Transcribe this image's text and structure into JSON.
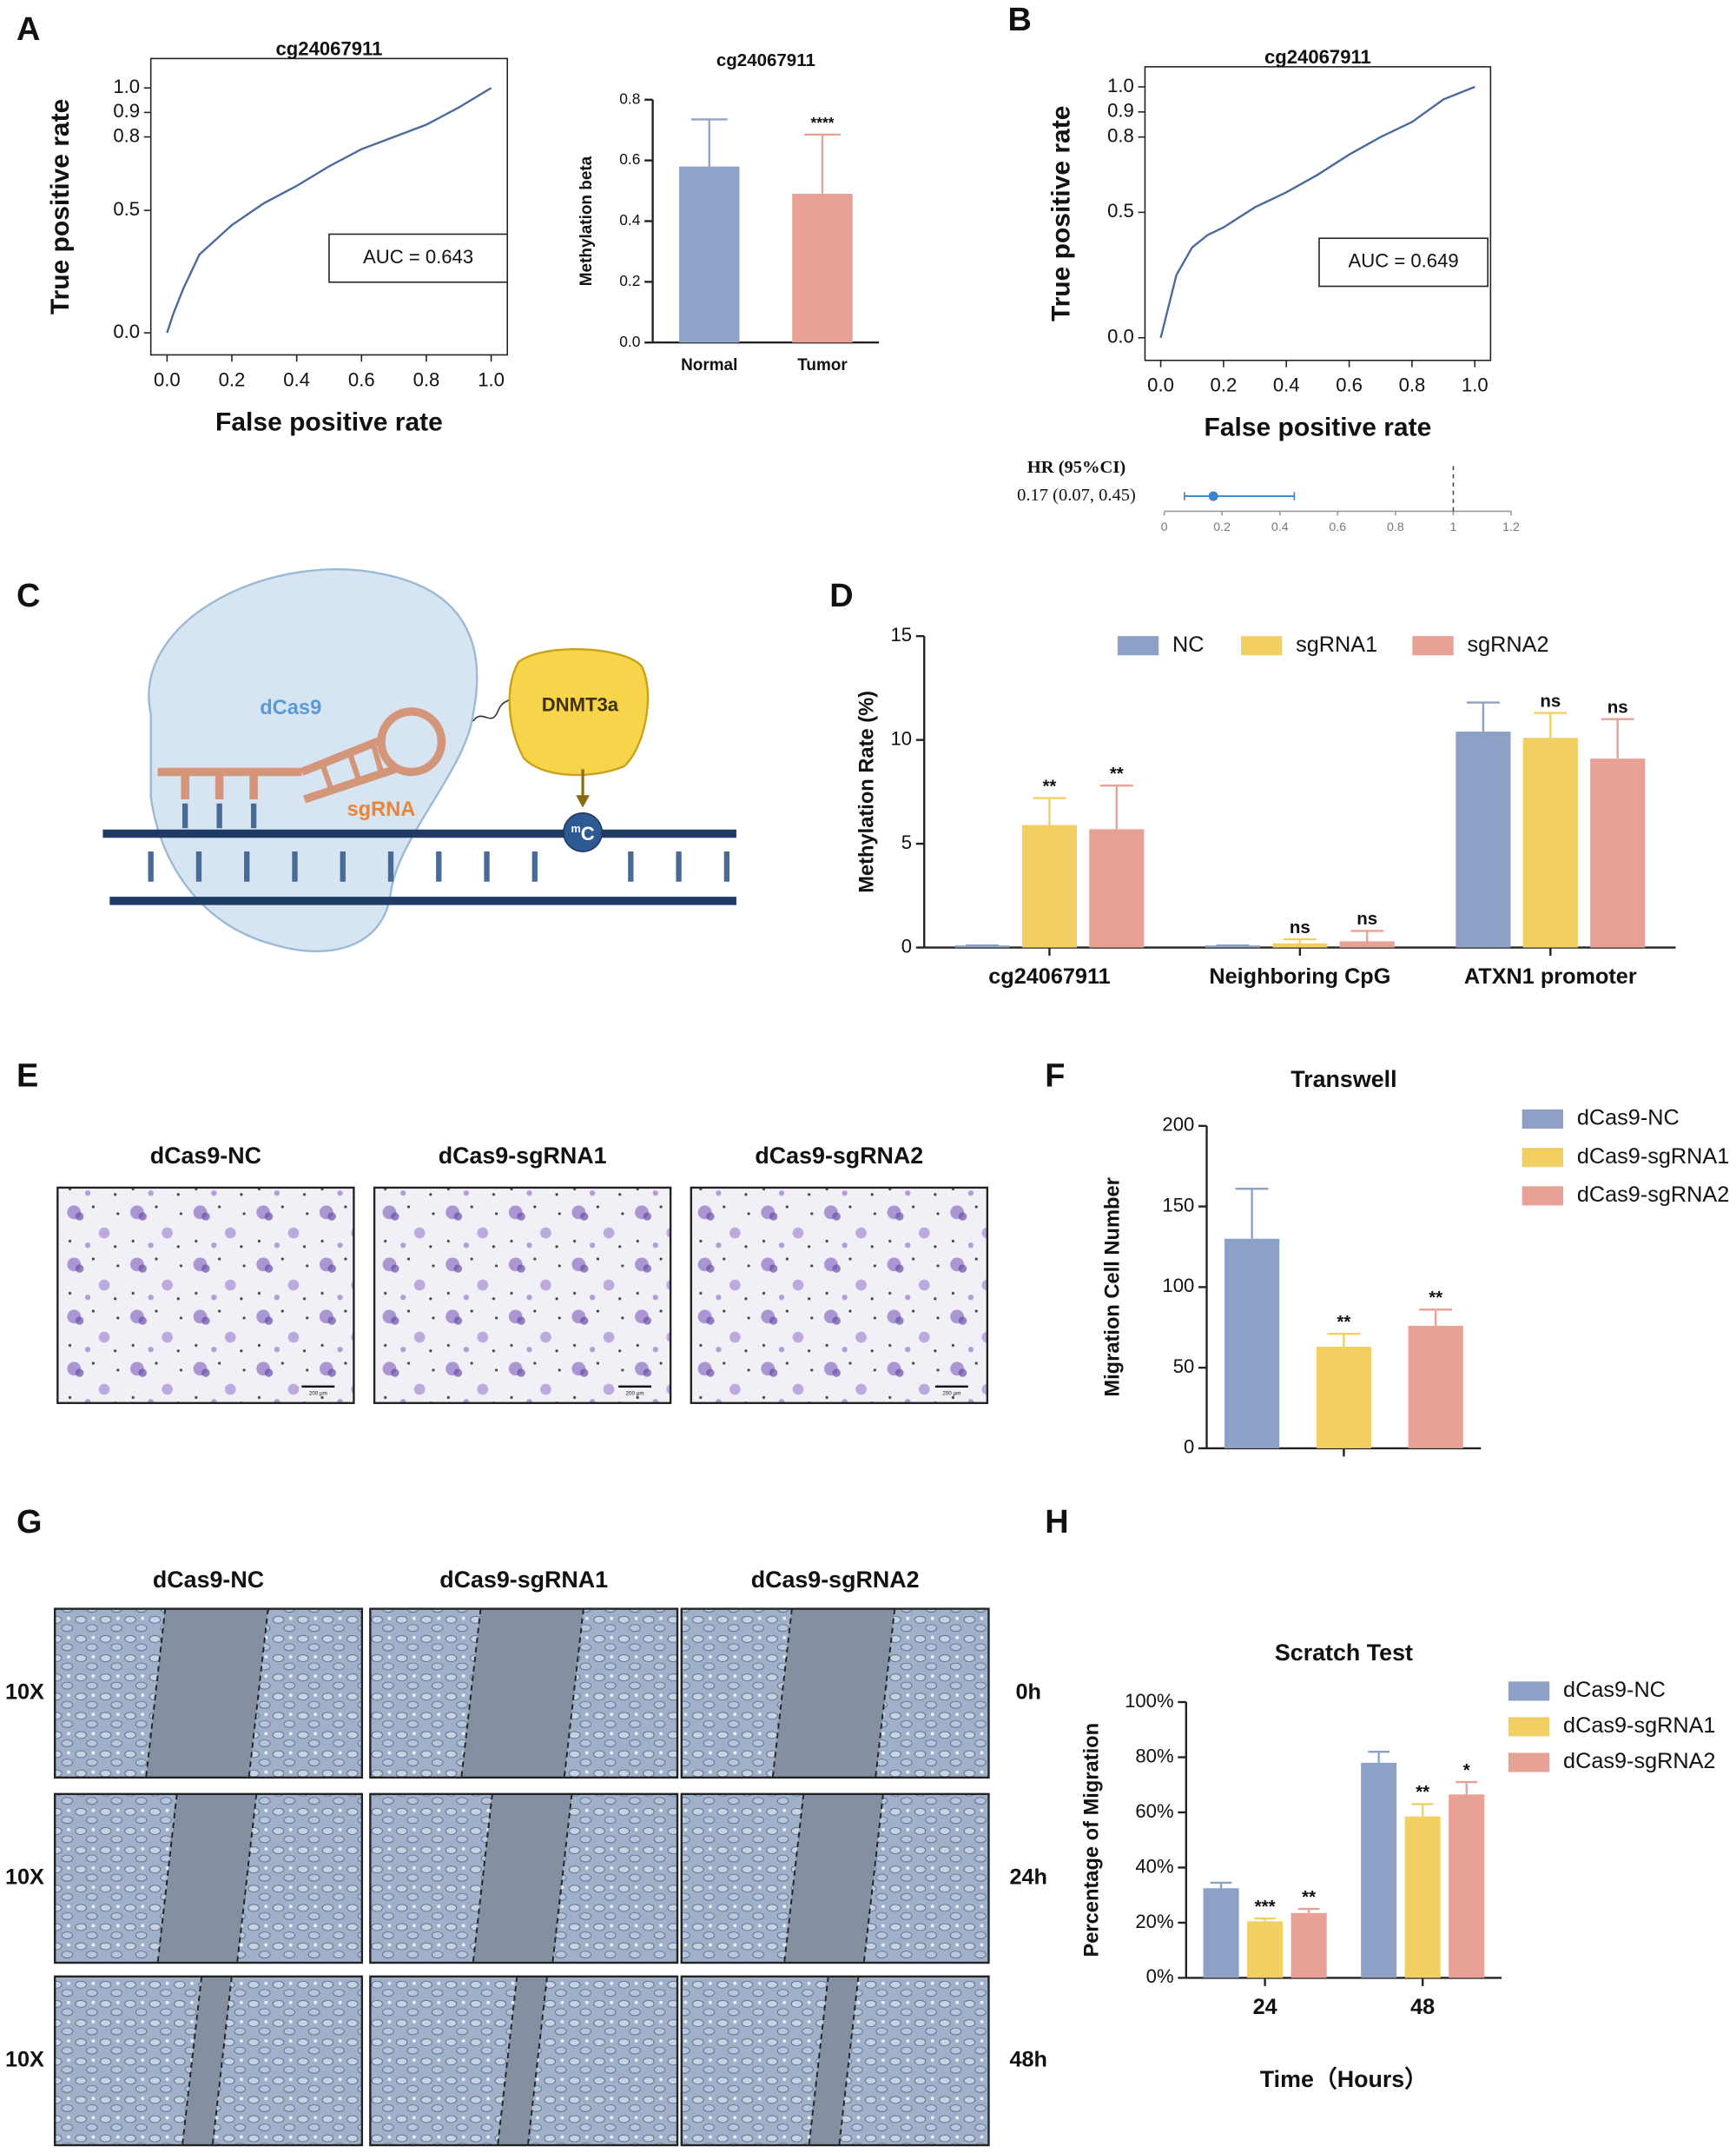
{
  "panel_labels": [
    "A",
    "B",
    "C",
    "D",
    "E",
    "F",
    "G",
    "H"
  ],
  "diagram": {
    "protein": "dCas9",
    "guide": "sgRNA",
    "enzyme": "DNMT3a",
    "methyl_superscript": "m",
    "methyl_base": "C"
  },
  "transwell_images": {
    "columns": [
      "dCas9-NC",
      "dCas9-sgRNA1",
      "dCas9-sgRNA2"
    ],
    "scale_bar": "200 μm"
  },
  "scratch_images": {
    "columns": [
      "dCas9-NC",
      "dCas9-sgRNA1",
      "dCas9-sgRNA2"
    ],
    "magnification": "10X",
    "times": [
      "0h",
      "24h",
      "48h"
    ]
  },
  "chart_data": [
    {
      "type": "line",
      "title": "cg24067911",
      "xlabel": "False positive rate",
      "ylabel": "True positive rate",
      "annotation": "AUC =  0.643",
      "color": "#4a6a9c",
      "x": [
        0,
        0.02,
        0.05,
        0.1,
        0.15,
        0.2,
        0.3,
        0.4,
        0.5,
        0.6,
        0.7,
        0.8,
        0.9,
        1.0
      ],
      "values": [
        0,
        0.08,
        0.18,
        0.32,
        0.38,
        0.44,
        0.53,
        0.6,
        0.68,
        0.75,
        0.8,
        0.85,
        0.92,
        1.0
      ],
      "xlim": [
        -0.05,
        1.05
      ],
      "ylim": [
        -0.09,
        1.12
      ],
      "xticks": [
        {
          "value": 0,
          "label": "0.0"
        },
        0.2,
        0.4,
        0.6,
        0.8,
        {
          "value": 1,
          "label": "1.0"
        }
      ],
      "yticks": [
        {
          "value": 0,
          "label": "0.0"
        },
        0.5,
        0.8,
        0.9,
        {
          "value": 1,
          "label": "1.0"
        }
      ]
    },
    {
      "type": "bar",
      "title": "cg24067911",
      "ylabel": "Methylation beta",
      "categories": [
        "Normal",
        "Tumor"
      ],
      "values": [
        0.58,
        0.49
      ],
      "errors": [
        0.155,
        0.195
      ],
      "colors": [
        "#8fa3c8",
        "#e9a194"
      ],
      "significance": [
        null,
        "****"
      ],
      "ylim": [
        0,
        0.8
      ],
      "yticks": [
        {
          "value": 0,
          "label": "0.0"
        },
        0.2,
        0.4,
        0.6,
        0.8
      ]
    },
    {
      "type": "line",
      "title": "cg24067911",
      "xlabel": "False positive rate",
      "ylabel": "True positive rate",
      "annotation": "AUC =  0.649",
      "color": "#4a6a9c",
      "x": [
        0,
        0.02,
        0.05,
        0.1,
        0.15,
        0.2,
        0.3,
        0.4,
        0.5,
        0.6,
        0.7,
        0.8,
        0.9,
        1.0
      ],
      "values": [
        0,
        0.1,
        0.25,
        0.36,
        0.41,
        0.44,
        0.52,
        0.58,
        0.65,
        0.73,
        0.8,
        0.86,
        0.95,
        1.0
      ],
      "xlim": [
        -0.05,
        1.05
      ],
      "ylim": [
        -0.09,
        1.08
      ],
      "xticks": [
        {
          "value": 0,
          "label": "0.0"
        },
        0.2,
        0.4,
        0.6,
        0.8,
        {
          "value": 1,
          "label": "1.0"
        }
      ],
      "yticks": [
        {
          "value": 0,
          "label": "0.0"
        },
        0.5,
        0.8,
        0.9,
        {
          "value": 1,
          "label": "1.0"
        }
      ]
    },
    {
      "type": "forest",
      "header": "HR (95%CI)",
      "label": "0.17 (0.07, 0.45)",
      "value": 0.17,
      "ci": [
        0.07,
        0.45
      ],
      "reference": 1,
      "color": "#3a86c8",
      "xlim": [
        0,
        1.2
      ],
      "xticks": [
        0,
        0.2,
        0.4,
        0.6,
        0.8,
        1,
        1.2
      ]
    },
    {
      "type": "grouped_bar",
      "ylabel": "Methylation Rate (%)",
      "categories": [
        "cg24067911",
        "Neighboring CpG",
        "ATXN1 promoter"
      ],
      "legend": "top",
      "series": [
        {
          "name": "NC",
          "color": "#8da1c7",
          "values": [
            0.1,
            0.1,
            10.4
          ],
          "errors": [
            0,
            0,
            1.4
          ]
        },
        {
          "name": "sgRNA1",
          "color": "#f2cf63",
          "values": [
            5.9,
            0.2,
            10.1
          ],
          "errors": [
            1.3,
            0.2,
            1.2
          ],
          "significance": [
            "**",
            "ns",
            "ns"
          ]
        },
        {
          "name": "sgRNA2",
          "color": "#e8a195",
          "values": [
            5.7,
            0.3,
            9.1
          ],
          "errors": [
            2.1,
            0.5,
            1.9
          ],
          "significance": [
            "**",
            "ns",
            "ns"
          ]
        }
      ],
      "ylim": [
        0,
        15
      ],
      "yticks": [
        0,
        5,
        10,
        15
      ]
    },
    {
      "type": "grouped_bar",
      "title": "Transwell",
      "ylabel": "Migration Cell Number",
      "categories": [
        null
      ],
      "legend": "right",
      "series": [
        {
          "name": "dCas9-NC",
          "color": "#8da1c7",
          "values": [
            130
          ],
          "errors": [
            31
          ]
        },
        {
          "name": "dCas9-sgRNA1",
          "color": "#f2cf63",
          "values": [
            63
          ],
          "errors": [
            8
          ],
          "significance": [
            "**"
          ]
        },
        {
          "name": "dCas9-sgRNA2",
          "color": "#e8a195",
          "values": [
            76
          ],
          "errors": [
            10
          ],
          "significance": [
            "**"
          ]
        }
      ],
      "ylim": [
        0,
        200
      ],
      "yticks": [
        0,
        50,
        100,
        150,
        200
      ]
    },
    {
      "type": "grouped_bar",
      "title": "Scratch Test",
      "ylabel": "Percentage of Migration",
      "xlabel": "Time（Hours）",
      "categories": [
        "24",
        "48"
      ],
      "legend": "right",
      "series": [
        {
          "name": "dCas9-NC",
          "color": "#8da1c7",
          "values": [
            32.5,
            78
          ],
          "errors": [
            2,
            4
          ]
        },
        {
          "name": "dCas9-sgRNA1",
          "color": "#f2cf63",
          "values": [
            20.5,
            58.5
          ],
          "errors": [
            1,
            4.5
          ],
          "significance": [
            "***",
            "**"
          ]
        },
        {
          "name": "dCas9-sgRNA2",
          "color": "#e8a195",
          "values": [
            23.5,
            66.5
          ],
          "errors": [
            1.5,
            4.5
          ],
          "significance": [
            "**",
            "*"
          ]
        }
      ],
      "ylim": [
        0,
        100
      ],
      "yticks": [
        {
          "value": 0,
          "label": "0%"
        },
        {
          "value": 20,
          "label": "20%"
        },
        {
          "value": 40,
          "label": "40%"
        },
        {
          "value": 60,
          "label": "60%"
        },
        {
          "value": 80,
          "label": "80%"
        },
        {
          "value": 100,
          "label": "100%"
        }
      ]
    }
  ]
}
